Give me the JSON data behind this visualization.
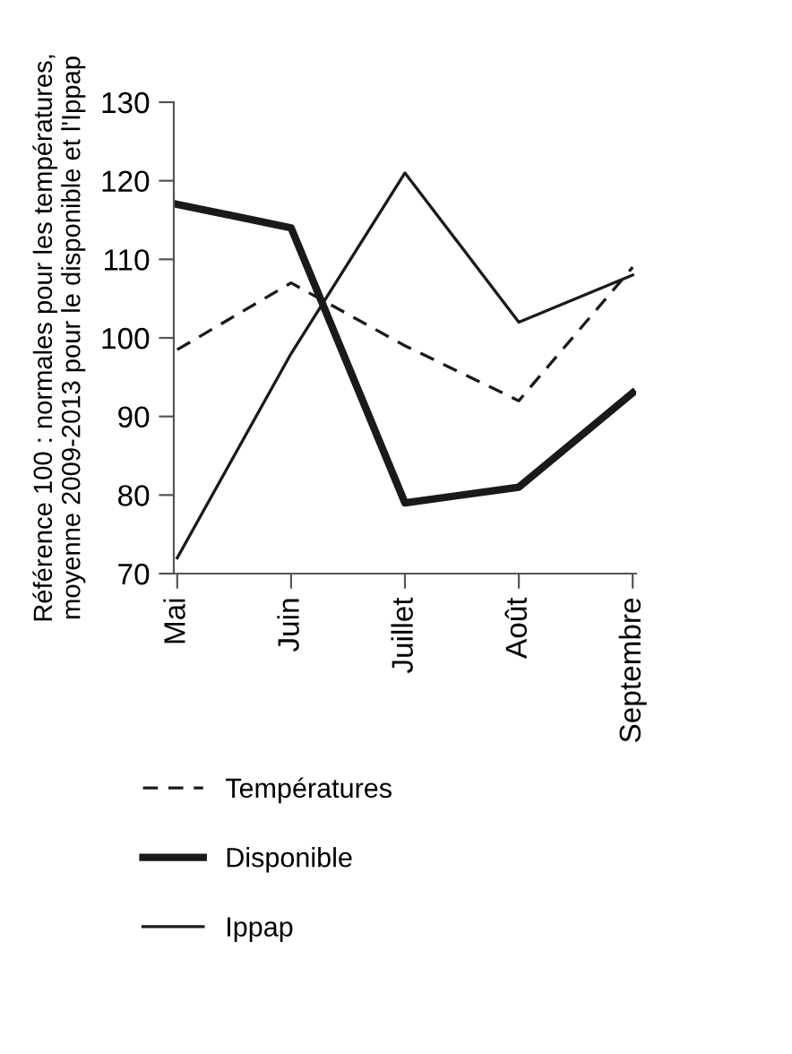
{
  "chart_data": {
    "type": "line",
    "ylabel": "Référence 100 : normales pour les températures,\nmoyenne 2009-2013 pour le disponible et l'Ippap",
    "categories": [
      "Mai",
      "Juin",
      "Juillet",
      "Août",
      "Septembre"
    ],
    "series": [
      {
        "name": "Températures",
        "color": "#1a1a1a",
        "line_style": "dashed",
        "values": [
          98.5,
          107,
          99,
          92,
          109
        ]
      },
      {
        "name": "Disponible",
        "color": "#1a1a1a",
        "line_style": "solid",
        "values": [
          117,
          114,
          79,
          81,
          93
        ]
      },
      {
        "name": "Ippap",
        "color": "#1a1a1a",
        "line_style": "solid",
        "values": [
          72,
          98,
          121,
          102,
          108
        ]
      }
    ],
    "ylim": [
      70,
      130
    ],
    "yticks": [
      70,
      80,
      90,
      100,
      110,
      120,
      130
    ],
    "grid": false,
    "legend": "bottom",
    "marker": "none"
  }
}
